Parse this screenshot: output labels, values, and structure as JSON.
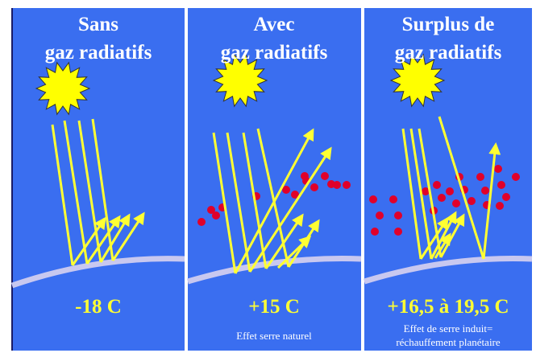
{
  "panels": [
    {
      "title": [
        "Sans",
        "gaz radiatifs"
      ],
      "temperature": "-18 C"
    },
    {
      "title": [
        "Avec",
        "gaz radiatifs"
      ],
      "temperature": "+15 C",
      "caption": [
        "Effet serre naturel"
      ]
    },
    {
      "title": [
        "Surplus de",
        "gaz radiatifs"
      ],
      "temperature": "+16,5 à 19,5 C",
      "caption": [
        "Effet de serre induit=",
        "réchauffement planétaire"
      ]
    }
  ]
}
